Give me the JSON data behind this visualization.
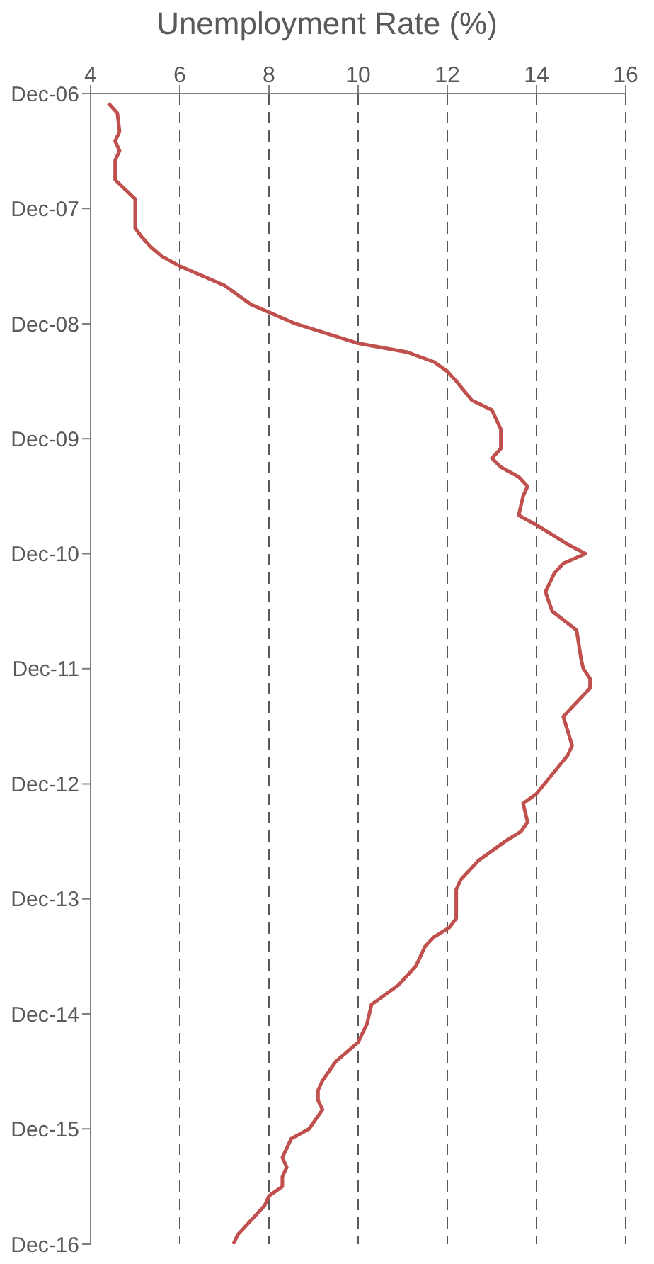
{
  "chart_data": {
    "type": "line",
    "title": "Unemployment Rate (%)",
    "orientation": "horizontal",
    "x": [
      "2007-01",
      "2007-02",
      "2007-04",
      "2007-05",
      "2007-06",
      "2007-07",
      "2007-09",
      "2007-11",
      "2008-02",
      "2008-03",
      "2008-04",
      "2008-05",
      "2008-06",
      "2008-08",
      "2008-10",
      "2008-12",
      "2009-02",
      "2009-03",
      "2009-04",
      "2009-05",
      "2009-06",
      "2009-08",
      "2009-09",
      "2009-11",
      "2010-01",
      "2010-02",
      "2010-03",
      "2010-04",
      "2010-05",
      "2010-06",
      "2010-08",
      "2010-09",
      "2010-11",
      "2010-12",
      "2011-01",
      "2011-02",
      "2011-04",
      "2011-06",
      "2011-08",
      "2011-11",
      "2011-12",
      "2012-01",
      "2012-02",
      "2012-05",
      "2012-08",
      "2012-09",
      "2013-01",
      "2013-02",
      "2013-04",
      "2013-05",
      "2013-06",
      "2013-08",
      "2013-10",
      "2013-11",
      "2014-02",
      "2014-03",
      "2014-04",
      "2014-05",
      "2014-07",
      "2014-09",
      "2014-11",
      "2015-01",
      "2015-03",
      "2015-05",
      "2015-07",
      "2015-08",
      "2015-09",
      "2015-10",
      "2015-12",
      "2016-01",
      "2016-03",
      "2016-04",
      "2016-05",
      "2016-06",
      "2016-07",
      "2016-08",
      "2016-11",
      "2016-12"
    ],
    "series": [
      {
        "color": "#c0504d",
        "values": [
          4.4,
          4.6,
          4.65,
          4.55,
          4.65,
          4.55,
          4.55,
          5.0,
          5.0,
          5.15,
          5.35,
          5.6,
          6.0,
          7.0,
          7.6,
          8.6,
          10.0,
          11.1,
          11.7,
          12.0,
          12.2,
          12.55,
          13.0,
          13.2,
          13.2,
          13.0,
          13.2,
          13.6,
          13.8,
          13.7,
          13.6,
          14.0,
          14.7,
          15.1,
          14.6,
          14.4,
          14.2,
          14.35,
          14.9,
          15.0,
          15.05,
          15.2,
          15.2,
          14.6,
          14.8,
          14.7,
          14.0,
          13.7,
          13.8,
          13.65,
          13.3,
          12.7,
          12.3,
          12.2,
          12.2,
          12.05,
          11.7,
          11.5,
          11.3,
          10.9,
          10.3,
          10.2,
          10.0,
          9.5,
          9.2,
          9.1,
          9.1,
          9.2,
          8.9,
          8.5,
          8.3,
          8.4,
          8.3,
          8.3,
          8.0,
          7.9,
          7.3,
          7.2
        ]
      }
    ],
    "ylim": [
      "2016-12",
      "2006-12"
    ],
    "yticks": [
      {
        "value": "2006-12",
        "label": "Dec-06"
      },
      {
        "value": "2007-12",
        "label": "Dec-07"
      },
      {
        "value": "2008-12",
        "label": "Dec-08"
      },
      {
        "value": "2009-12",
        "label": "Dec-09"
      },
      {
        "value": "2010-12",
        "label": "Dec-10"
      },
      {
        "value": "2011-12",
        "label": "Dec-11"
      },
      {
        "value": "2012-12",
        "label": "Dec-12"
      },
      {
        "value": "2013-12",
        "label": "Dec-13"
      },
      {
        "value": "2014-12",
        "label": "Dec-14"
      },
      {
        "value": "2015-12",
        "label": "Dec-15"
      },
      {
        "value": "2016-12",
        "label": "Dec-16"
      }
    ],
    "xlim": [
      4,
      16
    ],
    "xticks": [
      4,
      6,
      8,
      10,
      12,
      14,
      16
    ],
    "grid": "x",
    "marker": "none",
    "line_style": "solid"
  }
}
